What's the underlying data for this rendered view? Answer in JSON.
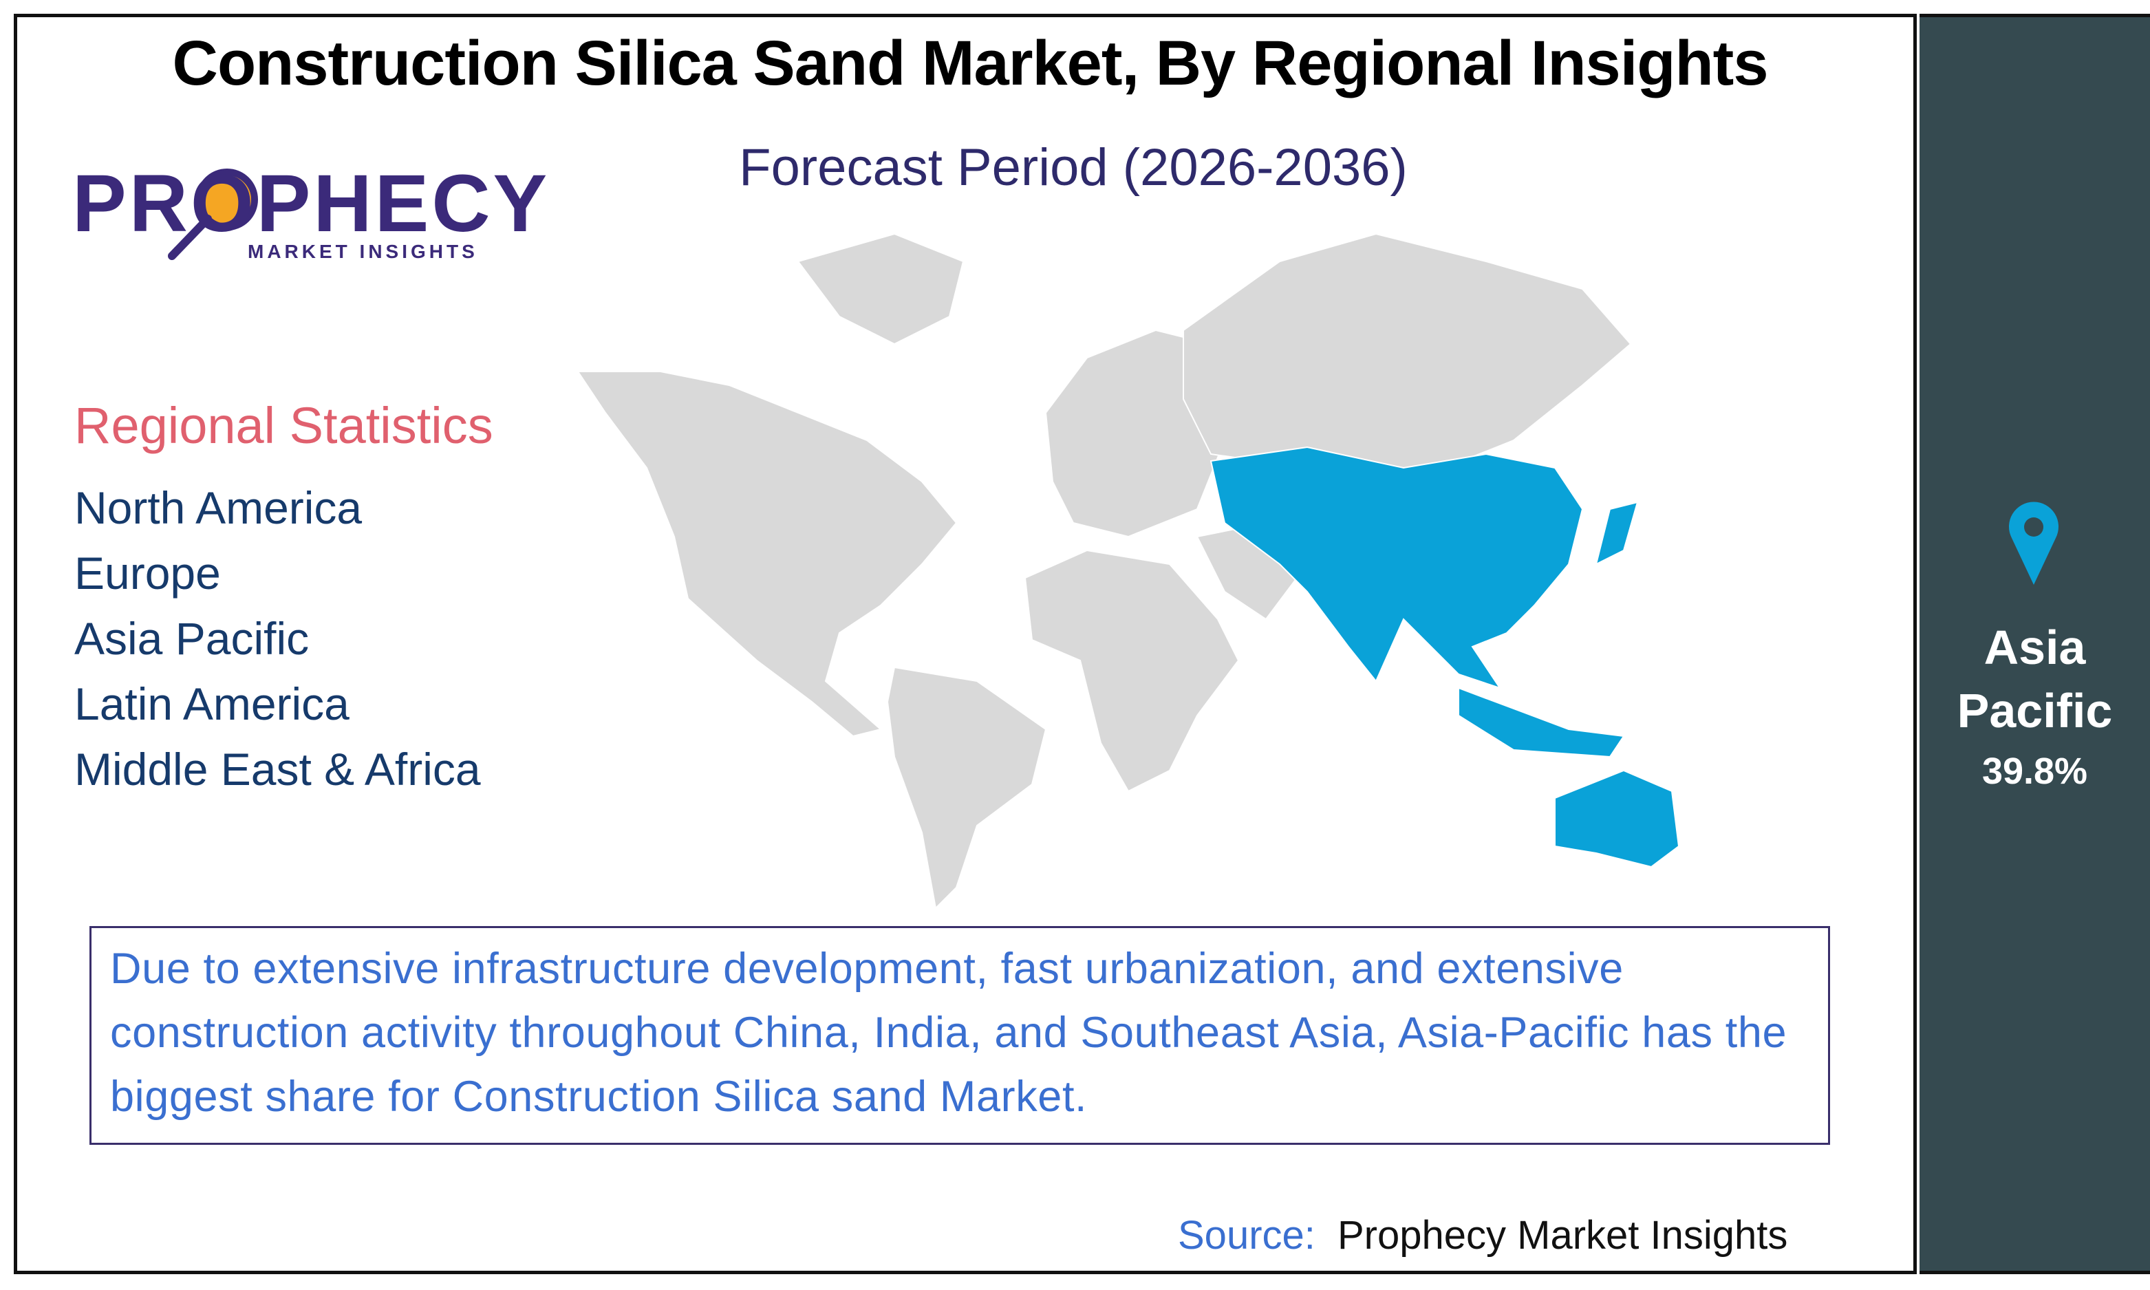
{
  "header": {
    "title": "Construction Silica Sand Market, By Regional Insights",
    "subtitle": "Forecast Period (2026-2036)"
  },
  "logo": {
    "name": "PROPHECY",
    "tagline": "MARKET INSIGHTS"
  },
  "regional_statistics": {
    "heading": "Regional Statistics",
    "regions": [
      "North America",
      "Europe",
      "Asia Pacific",
      "Latin America",
      "Middle East & Africa"
    ]
  },
  "highlight": {
    "region": "Asia Pacific",
    "share": "39.8%"
  },
  "description": "Due to extensive infrastructure development, fast urbanization, and extensive construction activity throughout China, India, and Southeast Asia, Asia-Pacific has the biggest share for Construction Silica sand Market.",
  "source": {
    "label": "Source:",
    "text": "Prophecy Market Insights"
  }
}
